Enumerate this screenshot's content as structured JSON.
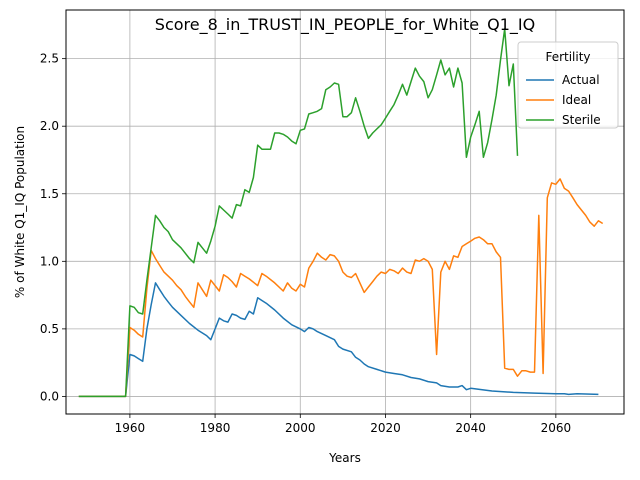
{
  "chart_data": {
    "type": "line",
    "title": "Score_8_in_TRUST_IN_PEOPLE_for_White_Q1_IQ",
    "xlabel": "Years",
    "ylabel": "% of White Q1_IQ Population",
    "xlim": [
      1945,
      2076
    ],
    "ylim": [
      -0.13,
      2.86
    ],
    "xticks": [
      1960,
      1980,
      2000,
      2020,
      2040,
      2060
    ],
    "yticks": [
      0.0,
      0.5,
      1.0,
      1.5,
      2.0,
      2.5
    ],
    "xtick_labels": [
      "1960",
      "1980",
      "2000",
      "2020",
      "2040",
      "2060"
    ],
    "ytick_labels": [
      "0.0",
      "0.5",
      "1.0",
      "1.5",
      "2.0",
      "2.5"
    ],
    "grid": true,
    "legend": {
      "title": "Fertility",
      "position": "top-right"
    },
    "series": [
      {
        "name": "Actual",
        "color": "#1f77b4",
        "points": [
          [
            1948,
            0.0
          ],
          [
            1950,
            0.0
          ],
          [
            1955,
            0.0
          ],
          [
            1959,
            0.0
          ],
          [
            1960,
            0.31
          ],
          [
            1961,
            0.3
          ],
          [
            1962,
            0.28
          ],
          [
            1963,
            0.26
          ],
          [
            1964,
            0.5
          ],
          [
            1965,
            0.68
          ],
          [
            1966,
            0.84
          ],
          [
            1967,
            0.79
          ],
          [
            1968,
            0.74
          ],
          [
            1969,
            0.7
          ],
          [
            1970,
            0.66
          ],
          [
            1972,
            0.6
          ],
          [
            1974,
            0.54
          ],
          [
            1976,
            0.49
          ],
          [
            1978,
            0.45
          ],
          [
            1979,
            0.42
          ],
          [
            1980,
            0.5
          ],
          [
            1981,
            0.58
          ],
          [
            1982,
            0.56
          ],
          [
            1983,
            0.55
          ],
          [
            1984,
            0.61
          ],
          [
            1985,
            0.6
          ],
          [
            1986,
            0.58
          ],
          [
            1987,
            0.57
          ],
          [
            1988,
            0.63
          ],
          [
            1989,
            0.61
          ],
          [
            1990,
            0.73
          ],
          [
            1991,
            0.71
          ],
          [
            1992,
            0.69
          ],
          [
            1994,
            0.64
          ],
          [
            1996,
            0.58
          ],
          [
            1998,
            0.53
          ],
          [
            2000,
            0.5
          ],
          [
            2001,
            0.48
          ],
          [
            2002,
            0.51
          ],
          [
            2003,
            0.5
          ],
          [
            2004,
            0.48
          ],
          [
            2006,
            0.45
          ],
          [
            2008,
            0.42
          ],
          [
            2009,
            0.37
          ],
          [
            2010,
            0.35
          ],
          [
            2012,
            0.33
          ],
          [
            2013,
            0.29
          ],
          [
            2014,
            0.27
          ],
          [
            2015,
            0.24
          ],
          [
            2016,
            0.22
          ],
          [
            2018,
            0.2
          ],
          [
            2020,
            0.18
          ],
          [
            2022,
            0.17
          ],
          [
            2024,
            0.16
          ],
          [
            2026,
            0.14
          ],
          [
            2028,
            0.13
          ],
          [
            2030,
            0.11
          ],
          [
            2032,
            0.1
          ],
          [
            2033,
            0.08
          ],
          [
            2035,
            0.07
          ],
          [
            2037,
            0.07
          ],
          [
            2038,
            0.08
          ],
          [
            2039,
            0.05
          ],
          [
            2040,
            0.06
          ],
          [
            2045,
            0.04
          ],
          [
            2050,
            0.03
          ],
          [
            2055,
            0.025
          ],
          [
            2060,
            0.02
          ],
          [
            2062,
            0.02
          ],
          [
            2063,
            0.015
          ],
          [
            2065,
            0.02
          ],
          [
            2070,
            0.015
          ]
        ]
      },
      {
        "name": "Ideal",
        "color": "#ff7f0e",
        "points": [
          [
            1948,
            0.0
          ],
          [
            1950,
            0.0
          ],
          [
            1955,
            0.0
          ],
          [
            1959,
            0.0
          ],
          [
            1960,
            0.51
          ],
          [
            1961,
            0.49
          ],
          [
            1962,
            0.46
          ],
          [
            1963,
            0.44
          ],
          [
            1964,
            0.8
          ],
          [
            1965,
            1.08
          ],
          [
            1966,
            1.02
          ],
          [
            1967,
            0.97
          ],
          [
            1968,
            0.92
          ],
          [
            1970,
            0.86
          ],
          [
            1971,
            0.82
          ],
          [
            1972,
            0.79
          ],
          [
            1973,
            0.74
          ],
          [
            1974,
            0.7
          ],
          [
            1975,
            0.66
          ],
          [
            1976,
            0.84
          ],
          [
            1977,
            0.79
          ],
          [
            1978,
            0.74
          ],
          [
            1979,
            0.86
          ],
          [
            1980,
            0.82
          ],
          [
            1981,
            0.78
          ],
          [
            1982,
            0.9
          ],
          [
            1983,
            0.88
          ],
          [
            1984,
            0.85
          ],
          [
            1985,
            0.81
          ],
          [
            1986,
            0.91
          ],
          [
            1987,
            0.89
          ],
          [
            1988,
            0.87
          ],
          [
            1990,
            0.82
          ],
          [
            1991,
            0.91
          ],
          [
            1992,
            0.89
          ],
          [
            1994,
            0.84
          ],
          [
            1996,
            0.78
          ],
          [
            1997,
            0.84
          ],
          [
            1998,
            0.8
          ],
          [
            1999,
            0.78
          ],
          [
            2000,
            0.83
          ],
          [
            2001,
            0.81
          ],
          [
            2002,
            0.95
          ],
          [
            2003,
            1.0
          ],
          [
            2004,
            1.06
          ],
          [
            2005,
            1.03
          ],
          [
            2006,
            1.01
          ],
          [
            2007,
            1.05
          ],
          [
            2008,
            1.04
          ],
          [
            2009,
            1.0
          ],
          [
            2010,
            0.92
          ],
          [
            2011,
            0.89
          ],
          [
            2012,
            0.88
          ],
          [
            2013,
            0.91
          ],
          [
            2014,
            0.84
          ],
          [
            2015,
            0.77
          ],
          [
            2016,
            0.81
          ],
          [
            2017,
            0.85
          ],
          [
            2018,
            0.89
          ],
          [
            2019,
            0.92
          ],
          [
            2020,
            0.91
          ],
          [
            2021,
            0.94
          ],
          [
            2022,
            0.93
          ],
          [
            2023,
            0.91
          ],
          [
            2024,
            0.95
          ],
          [
            2025,
            0.92
          ],
          [
            2026,
            0.91
          ],
          [
            2027,
            1.01
          ],
          [
            2028,
            1.0
          ],
          [
            2029,
            1.02
          ],
          [
            2030,
            1.0
          ],
          [
            2031,
            0.94
          ],
          [
            2032,
            0.31
          ],
          [
            2033,
            0.92
          ],
          [
            2034,
            1.0
          ],
          [
            2035,
            0.94
          ],
          [
            2036,
            1.04
          ],
          [
            2037,
            1.03
          ],
          [
            2038,
            1.11
          ],
          [
            2039,
            1.13
          ],
          [
            2040,
            1.15
          ],
          [
            2041,
            1.17
          ],
          [
            2042,
            1.18
          ],
          [
            2043,
            1.16
          ],
          [
            2044,
            1.13
          ],
          [
            2045,
            1.13
          ],
          [
            2046,
            1.07
          ],
          [
            2047,
            1.03
          ],
          [
            2048,
            0.21
          ],
          [
            2049,
            0.2
          ],
          [
            2050,
            0.2
          ],
          [
            2051,
            0.15
          ],
          [
            2052,
            0.19
          ],
          [
            2053,
            0.19
          ],
          [
            2054,
            0.18
          ],
          [
            2055,
            0.18
          ],
          [
            2056,
            1.34
          ],
          [
            2057,
            0.17
          ],
          [
            2058,
            1.47
          ],
          [
            2059,
            1.58
          ],
          [
            2060,
            1.57
          ],
          [
            2061,
            1.61
          ],
          [
            2062,
            1.54
          ],
          [
            2063,
            1.52
          ],
          [
            2064,
            1.47
          ],
          [
            2065,
            1.42
          ],
          [
            2066,
            1.38
          ],
          [
            2067,
            1.34
          ],
          [
            2068,
            1.29
          ],
          [
            2069,
            1.26
          ],
          [
            2070,
            1.3
          ],
          [
            2071,
            1.28
          ]
        ]
      },
      {
        "name": "Sterile",
        "color": "#2ca02c",
        "points": [
          [
            1948,
            0.0
          ],
          [
            1950,
            0.0
          ],
          [
            1955,
            0.0
          ],
          [
            1959,
            0.0
          ],
          [
            1960,
            0.67
          ],
          [
            1961,
            0.66
          ],
          [
            1962,
            0.62
          ],
          [
            1963,
            0.61
          ],
          [
            1964,
            0.86
          ],
          [
            1965,
            1.1
          ],
          [
            1966,
            1.34
          ],
          [
            1967,
            1.3
          ],
          [
            1968,
            1.25
          ],
          [
            1969,
            1.22
          ],
          [
            1970,
            1.16
          ],
          [
            1972,
            1.1
          ],
          [
            1974,
            1.02
          ],
          [
            1975,
            0.99
          ],
          [
            1976,
            1.14
          ],
          [
            1977,
            1.1
          ],
          [
            1978,
            1.06
          ],
          [
            1979,
            1.15
          ],
          [
            1980,
            1.26
          ],
          [
            1981,
            1.41
          ],
          [
            1982,
            1.38
          ],
          [
            1983,
            1.35
          ],
          [
            1984,
            1.32
          ],
          [
            1985,
            1.42
          ],
          [
            1986,
            1.41
          ],
          [
            1987,
            1.53
          ],
          [
            1988,
            1.51
          ],
          [
            1989,
            1.62
          ],
          [
            1990,
            1.86
          ],
          [
            1991,
            1.83
          ],
          [
            1992,
            1.83
          ],
          [
            1993,
            1.83
          ],
          [
            1994,
            1.95
          ],
          [
            1995,
            1.95
          ],
          [
            1996,
            1.94
          ],
          [
            1997,
            1.92
          ],
          [
            1998,
            1.89
          ],
          [
            1999,
            1.87
          ],
          [
            2000,
            1.97
          ],
          [
            2001,
            1.98
          ],
          [
            2002,
            2.09
          ],
          [
            2003,
            2.1
          ],
          [
            2004,
            2.11
          ],
          [
            2005,
            2.13
          ],
          [
            2006,
            2.27
          ],
          [
            2007,
            2.29
          ],
          [
            2008,
            2.32
          ],
          [
            2009,
            2.31
          ],
          [
            2010,
            2.07
          ],
          [
            2011,
            2.07
          ],
          [
            2012,
            2.1
          ],
          [
            2013,
            2.21
          ],
          [
            2014,
            2.11
          ],
          [
            2015,
            2.0
          ],
          [
            2016,
            1.91
          ],
          [
            2017,
            1.95
          ],
          [
            2018,
            1.98
          ],
          [
            2019,
            2.01
          ],
          [
            2020,
            2.06
          ],
          [
            2021,
            2.11
          ],
          [
            2022,
            2.16
          ],
          [
            2023,
            2.23
          ],
          [
            2024,
            2.31
          ],
          [
            2025,
            2.23
          ],
          [
            2026,
            2.33
          ],
          [
            2027,
            2.43
          ],
          [
            2028,
            2.37
          ],
          [
            2029,
            2.33
          ],
          [
            2030,
            2.21
          ],
          [
            2031,
            2.27
          ],
          [
            2032,
            2.38
          ],
          [
            2033,
            2.49
          ],
          [
            2034,
            2.38
          ],
          [
            2035,
            2.43
          ],
          [
            2036,
            2.29
          ],
          [
            2037,
            2.43
          ],
          [
            2038,
            2.32
          ],
          [
            2039,
            1.77
          ],
          [
            2040,
            1.92
          ],
          [
            2041,
            2.01
          ],
          [
            2042,
            2.11
          ],
          [
            2043,
            1.77
          ],
          [
            2044,
            1.88
          ],
          [
            2045,
            2.05
          ],
          [
            2046,
            2.23
          ],
          [
            2047,
            2.49
          ],
          [
            2048,
            2.72
          ],
          [
            2049,
            2.3
          ],
          [
            2050,
            2.46
          ],
          [
            2051,
            1.78
          ]
        ]
      }
    ]
  }
}
